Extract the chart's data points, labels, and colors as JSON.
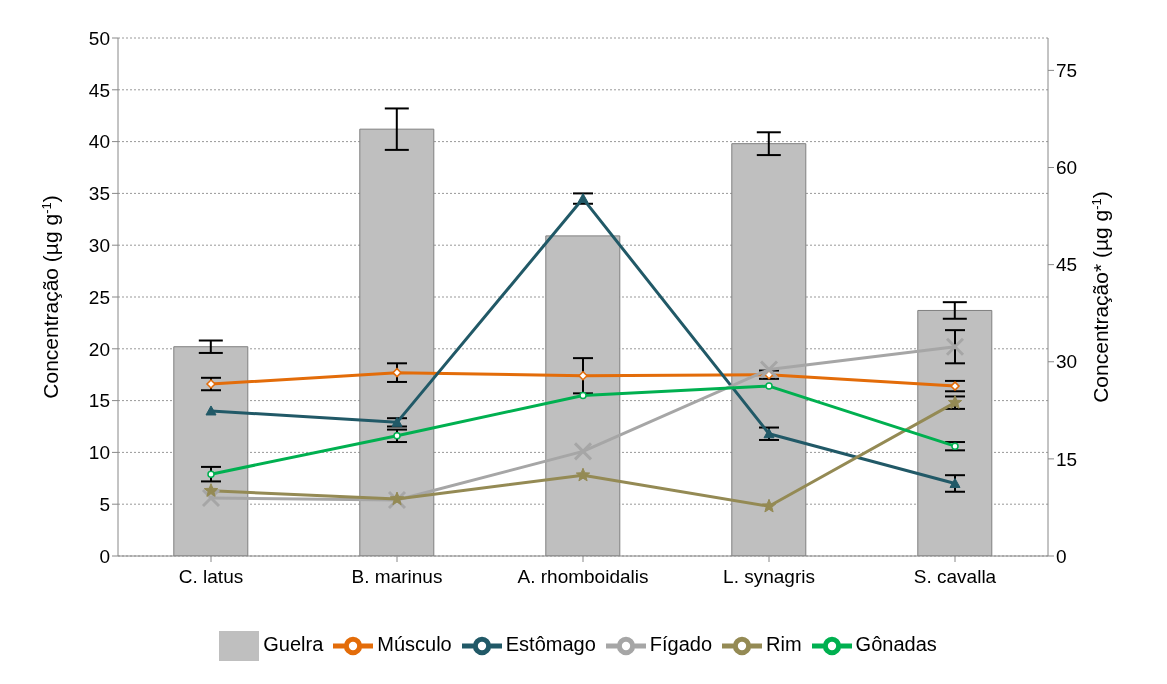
{
  "chart_data": {
    "type": "bar",
    "categories": [
      "C. latus",
      "B. marinus",
      "A. rhomboidalis",
      "L. synagris",
      "S. cavalla"
    ],
    "ylabel": "Concentração (µg g$^{-1}$)",
    "y2label": "Concentração* (µg g$^{-1}$)",
    "ylim": [
      0,
      50
    ],
    "yticks": [
      0,
      5,
      10,
      15,
      20,
      25,
      30,
      35,
      40,
      45,
      50
    ],
    "y2lim": [
      0,
      80
    ],
    "y2ticks": [
      0,
      15,
      30,
      45,
      60,
      75
    ],
    "grid": "y",
    "legend": "bottom",
    "series": [
      {
        "name": "Guelra",
        "color": "#bfbfbf",
        "values": [
          20.2,
          41.2,
          30.9,
          39.8,
          23.7
        ],
        "errors": [
          0.6,
          2.0,
          null,
          1.1,
          0.8
        ]
      },
      {
        "name": "Músculo",
        "type": "line",
        "color": "#e36c09",
        "marker": "diamond",
        "values": [
          16.6,
          17.7,
          17.4,
          17.5,
          16.4
        ],
        "errors": [
          0.6,
          0.9,
          1.7,
          0.4,
          0.5
        ]
      },
      {
        "name": "Estômago",
        "type": "line",
        "color": "#215967",
        "marker": "triangle",
        "values": [
          14.0,
          12.9,
          34.5,
          11.8,
          7.0
        ],
        "errors": [
          null,
          0.4,
          0.5,
          0.6,
          0.8
        ]
      },
      {
        "name": "Fígado",
        "type": "line",
        "color": "#a6a6a6",
        "marker": "cross",
        "values": [
          5.6,
          5.4,
          10.1,
          18.0,
          20.2
        ],
        "errors": [
          null,
          null,
          null,
          null,
          1.6
        ]
      },
      {
        "name": "Rim",
        "type": "line",
        "color": "#948a54",
        "marker": "star",
        "values": [
          6.3,
          5.5,
          7.8,
          4.8,
          14.8
        ],
        "errors": [
          null,
          null,
          null,
          null,
          0.6
        ]
      },
      {
        "name": "Gônadas",
        "type": "line",
        "color": "#00b050",
        "marker": "circle",
        "values": [
          7.9,
          11.6,
          15.5,
          16.4,
          10.6
        ],
        "errors": [
          0.7,
          0.6,
          null,
          null,
          0.4
        ]
      }
    ]
  }
}
